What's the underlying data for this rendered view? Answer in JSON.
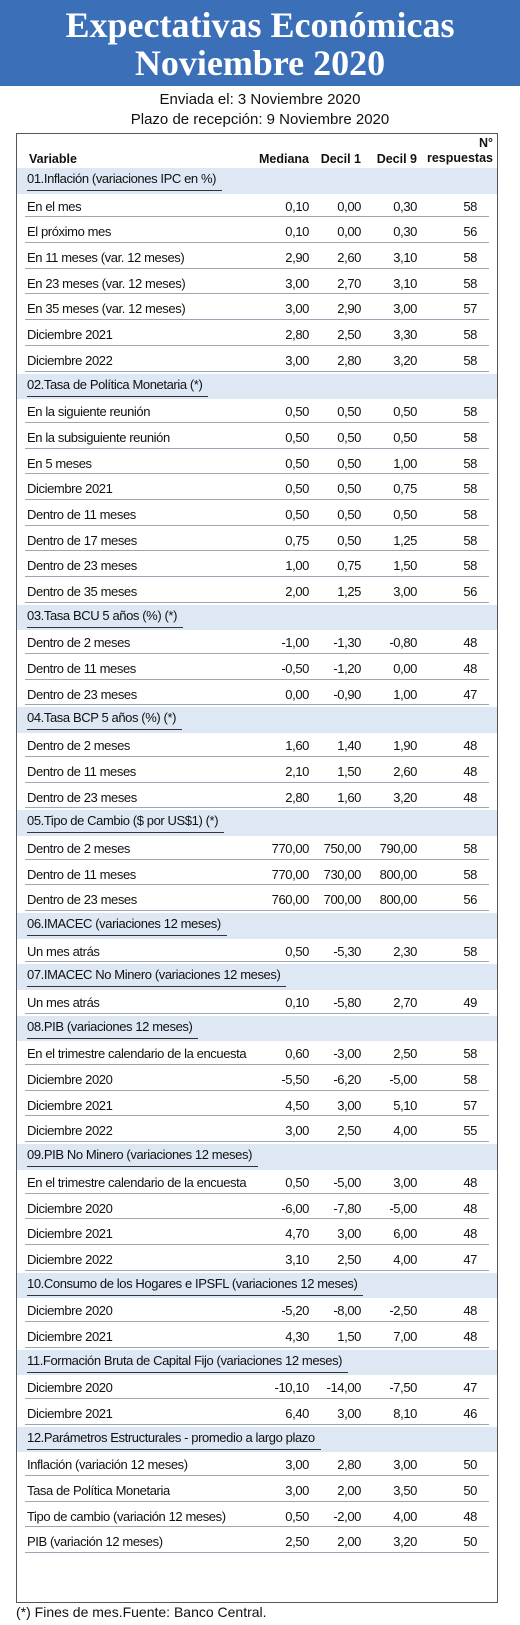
{
  "title": {
    "line1": "Expectativas Económicas",
    "line2": "Noviembre 2020"
  },
  "sent": "Enviada el: 3 Noviembre 2020",
  "deadline": "Plazo de recepción: 9 Noviembre 2020",
  "header": {
    "variable": "Variable",
    "mediana": "Mediana",
    "decil1": "Decil 1",
    "decil9": "Decil 9",
    "n_line1": "N°",
    "n_line2": "respuestas"
  },
  "footer": "(*) Fines de mes.Fuente: Banco Central.",
  "sections": [
    {
      "title": "01.Inflación (variaciones IPC en %)",
      "rows": [
        {
          "label": "En el mes",
          "mediana": "0,10",
          "decil1": "0,00",
          "decil9": "0,30",
          "n": "58"
        },
        {
          "label": "El próximo mes",
          "mediana": "0,10",
          "decil1": "0,00",
          "decil9": "0,30",
          "n": "56"
        },
        {
          "label": "En 11 meses (var. 12 meses)",
          "mediana": "2,90",
          "decil1": "2,60",
          "decil9": "3,10",
          "n": "58"
        },
        {
          "label": "En 23 meses (var. 12 meses)",
          "mediana": "3,00",
          "decil1": "2,70",
          "decil9": "3,10",
          "n": "58"
        },
        {
          "label": "En 35 meses (var. 12 meses)",
          "mediana": "3,00",
          "decil1": "2,90",
          "decil9": "3,00",
          "n": "57"
        },
        {
          "label": "Diciembre 2021",
          "mediana": "2,80",
          "decil1": "2,50",
          "decil9": "3,30",
          "n": "58"
        },
        {
          "label": "Diciembre 2022",
          "mediana": "3,00",
          "decil1": "2,80",
          "decil9": "3,20",
          "n": "58"
        }
      ]
    },
    {
      "title": "02.Tasa de Política Monetaria  (*)",
      "rows": [
        {
          "label": "En la siguiente reunión",
          "mediana": "0,50",
          "decil1": "0,50",
          "decil9": "0,50",
          "n": "58"
        },
        {
          "label": "En la subsiguiente reunión",
          "mediana": "0,50",
          "decil1": "0,50",
          "decil9": "0,50",
          "n": "58"
        },
        {
          "label": "En 5 meses",
          "mediana": "0,50",
          "decil1": "0,50",
          "decil9": "1,00",
          "n": "58"
        },
        {
          "label": "Diciembre 2021",
          "mediana": "0,50",
          "decil1": "0,50",
          "decil9": "0,75",
          "n": "58"
        },
        {
          "label": "Dentro de 11 meses",
          "mediana": "0,50",
          "decil1": "0,50",
          "decil9": "0,50",
          "n": "58"
        },
        {
          "label": "Dentro de 17 meses",
          "mediana": "0,75",
          "decil1": "0,50",
          "decil9": "1,25",
          "n": "58"
        },
        {
          "label": "Dentro de 23 meses",
          "mediana": "1,00",
          "decil1": "0,75",
          "decil9": "1,50",
          "n": "58"
        },
        {
          "label": "Dentro de 35 meses",
          "mediana": "2,00",
          "decil1": "1,25",
          "decil9": "3,00",
          "n": "56"
        }
      ]
    },
    {
      "title": "03.Tasa BCU 5 años  (%)  (*)",
      "rows": [
        {
          "label": "Dentro de 2 meses",
          "mediana": "-1,00",
          "decil1": "-1,30",
          "decil9": "-0,80",
          "n": "48"
        },
        {
          "label": "Dentro de 11 meses",
          "mediana": "-0,50",
          "decil1": "-1,20",
          "decil9": "0,00",
          "n": "48"
        },
        {
          "label": "Dentro de 23 meses",
          "mediana": "0,00",
          "decil1": "-0,90",
          "decil9": "1,00",
          "n": "47"
        }
      ]
    },
    {
      "title": "04.Tasa BCP 5 años  (%) (*)",
      "rows": [
        {
          "label": "Dentro de 2 meses",
          "mediana": "1,60",
          "decil1": "1,40",
          "decil9": "1,90",
          "n": "48"
        },
        {
          "label": "Dentro de 11 meses",
          "mediana": "2,10",
          "decil1": "1,50",
          "decil9": "2,60",
          "n": "48"
        },
        {
          "label": "Dentro de 23 meses",
          "mediana": "2,80",
          "decil1": "1,60",
          "decil9": "3,20",
          "n": "48"
        }
      ]
    },
    {
      "title": "05.Tipo de Cambio  ($ por US$1) (*)",
      "rows": [
        {
          "label": "Dentro de 2 meses",
          "mediana": "770,00",
          "decil1": "750,00",
          "decil9": "790,00",
          "n": "58"
        },
        {
          "label": "Dentro de 11 meses",
          "mediana": "770,00",
          "decil1": "730,00",
          "decil9": "800,00",
          "n": "58"
        },
        {
          "label": "Dentro de 23 meses",
          "mediana": "760,00",
          "decil1": "700,00",
          "decil9": "800,00",
          "n": "56"
        }
      ]
    },
    {
      "title": "06.IMACEC  (variaciones 12 meses)",
      "rows": [
        {
          "label": "Un mes atrás",
          "mediana": "0,50",
          "decil1": "-5,30",
          "decil9": "2,30",
          "n": "58"
        }
      ]
    },
    {
      "title": "07.IMACEC No Minero (variaciones 12 meses)",
      "rows": [
        {
          "label": "Un mes atrás",
          "mediana": "0,10",
          "decil1": "-5,80",
          "decil9": "2,70",
          "n": "49"
        }
      ]
    },
    {
      "title": "08.PIB  (variaciones 12 meses)",
      "rows": [
        {
          "label": "En el trimestre calendario de la encuesta",
          "mediana": "0,60",
          "decil1": "-3,00",
          "decil9": "2,50",
          "n": "58"
        },
        {
          "label": "Diciembre 2020",
          "mediana": "-5,50",
          "decil1": "-6,20",
          "decil9": "-5,00",
          "n": "58"
        },
        {
          "label": "Diciembre 2021",
          "mediana": "4,50",
          "decil1": "3,00",
          "decil9": "5,10",
          "n": "57"
        },
        {
          "label": "Diciembre 2022",
          "mediana": "3,00",
          "decil1": "2,50",
          "decil9": "4,00",
          "n": "55"
        }
      ]
    },
    {
      "title": "09.PIB No Minero (variaciones 12 meses)",
      "rows": [
        {
          "label": "En el trimestre calendario de la encuesta",
          "mediana": "0,50",
          "decil1": "-5,00",
          "decil9": "3,00",
          "n": "48"
        },
        {
          "label": "Diciembre 2020",
          "mediana": "-6,00",
          "decil1": "-7,80",
          "decil9": "-5,00",
          "n": "48"
        },
        {
          "label": "Diciembre 2021",
          "mediana": "4,70",
          "decil1": "3,00",
          "decil9": "6,00",
          "n": "48"
        },
        {
          "label": "Diciembre 2022",
          "mediana": "3,10",
          "decil1": "2,50",
          "decil9": "4,00",
          "n": "47"
        }
      ]
    },
    {
      "title": "10.Consumo de los Hogares e IPSFL  (variaciones 12 meses)",
      "rows": [
        {
          "label": "Diciembre 2020",
          "mediana": "-5,20",
          "decil1": "-8,00",
          "decil9": "-2,50",
          "n": "48"
        },
        {
          "label": "Diciembre 2021",
          "mediana": "4,30",
          "decil1": "1,50",
          "decil9": "7,00",
          "n": "48"
        }
      ]
    },
    {
      "title": "11.Formación Bruta de Capital Fijo  (variaciones 12 meses)",
      "rows": [
        {
          "label": "Diciembre 2020",
          "mediana": "-10,10",
          "decil1": "-14,00",
          "decil9": "-7,50",
          "n": "47"
        },
        {
          "label": "Diciembre 2021",
          "mediana": "6,40",
          "decil1": "3,00",
          "decil9": "8,10",
          "n": "46"
        }
      ]
    },
    {
      "title": "12.Parámetros Estructurales - promedio a largo plazo",
      "rows": [
        {
          "label": "Inflación (variación 12 meses)",
          "mediana": "3,00",
          "decil1": "2,80",
          "decil9": "3,00",
          "n": "50"
        },
        {
          "label": "Tasa de Política Monetaria",
          "mediana": "3,00",
          "decil1": "2,00",
          "decil9": "3,50",
          "n": "50"
        },
        {
          "label": "Tipo de cambio (variación 12 meses)",
          "mediana": "0,50",
          "decil1": "-2,00",
          "decil9": "4,00",
          "n": "48"
        },
        {
          "label": "PIB (variación 12 meses)",
          "mediana": "2,50",
          "decil1": "2,00",
          "decil9": "3,20",
          "n": "50"
        }
      ]
    }
  ]
}
